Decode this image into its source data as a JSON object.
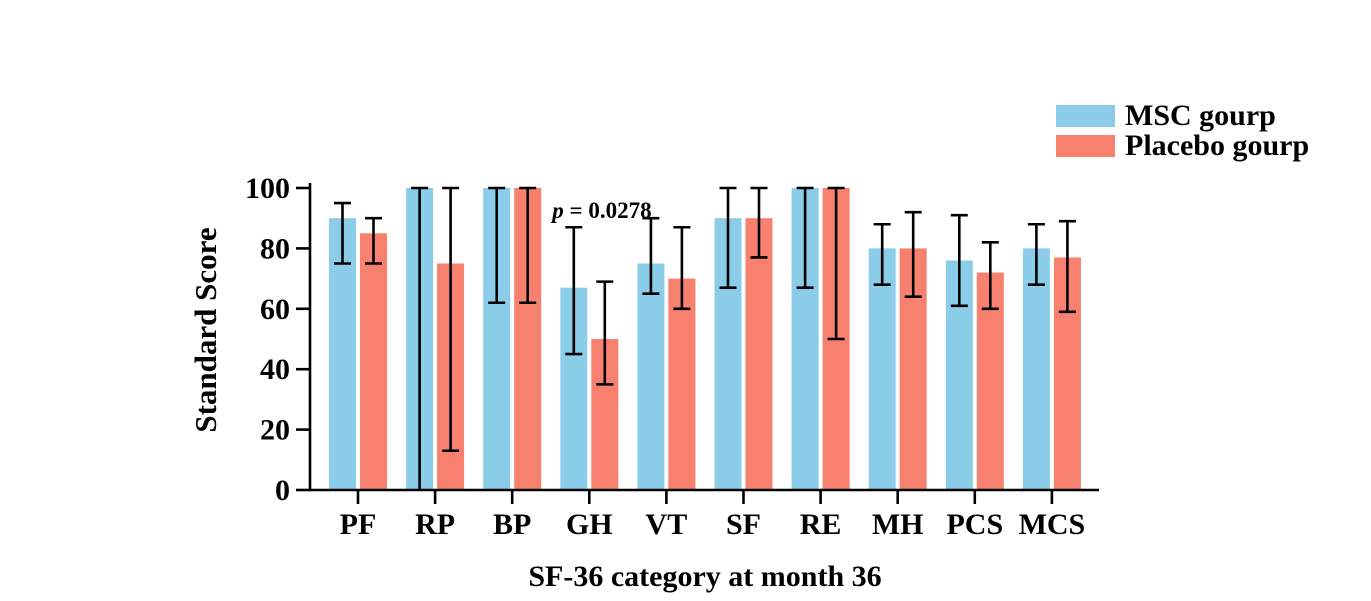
{
  "chart_data": {
    "type": "bar",
    "title": "",
    "xlabel": "SF-36 category at month 36",
    "ylabel": "Standard Score",
    "ylim": [
      0,
      100
    ],
    "yticks": [
      0,
      20,
      40,
      60,
      80,
      100
    ],
    "categories": [
      "PF",
      "RP",
      "BP",
      "GH",
      "VT",
      "SF",
      "RE",
      "MH",
      "PCS",
      "MCS"
    ],
    "series": [
      {
        "name": "MSC gourp",
        "color": "#8BCDE9",
        "values": [
          90,
          100,
          100,
          67,
          75,
          90,
          100,
          80,
          76,
          80
        ],
        "error_low": [
          75,
          0,
          62,
          45,
          65,
          67,
          67,
          68,
          61,
          68
        ],
        "error_high": [
          95,
          100,
          100,
          87,
          90,
          100,
          100,
          88,
          91,
          88
        ]
      },
      {
        "name": "Placebo gourp",
        "color": "#F8806F",
        "values": [
          85,
          75,
          100,
          50,
          70,
          90,
          100,
          80,
          72,
          77
        ],
        "error_low": [
          75,
          13,
          62,
          35,
          60,
          77,
          50,
          64,
          60,
          59
        ],
        "error_high": [
          90,
          100,
          100,
          69,
          87,
          100,
          100,
          92,
          82,
          89
        ]
      }
    ],
    "error_bars": true,
    "grid": false,
    "legend_position": "top-right",
    "annotation": {
      "text": "p = 0.0278",
      "var": "p",
      "rest": " = 0.0278",
      "category": "GH"
    },
    "axis_color": "#000000",
    "background": "#FFFFFF"
  }
}
